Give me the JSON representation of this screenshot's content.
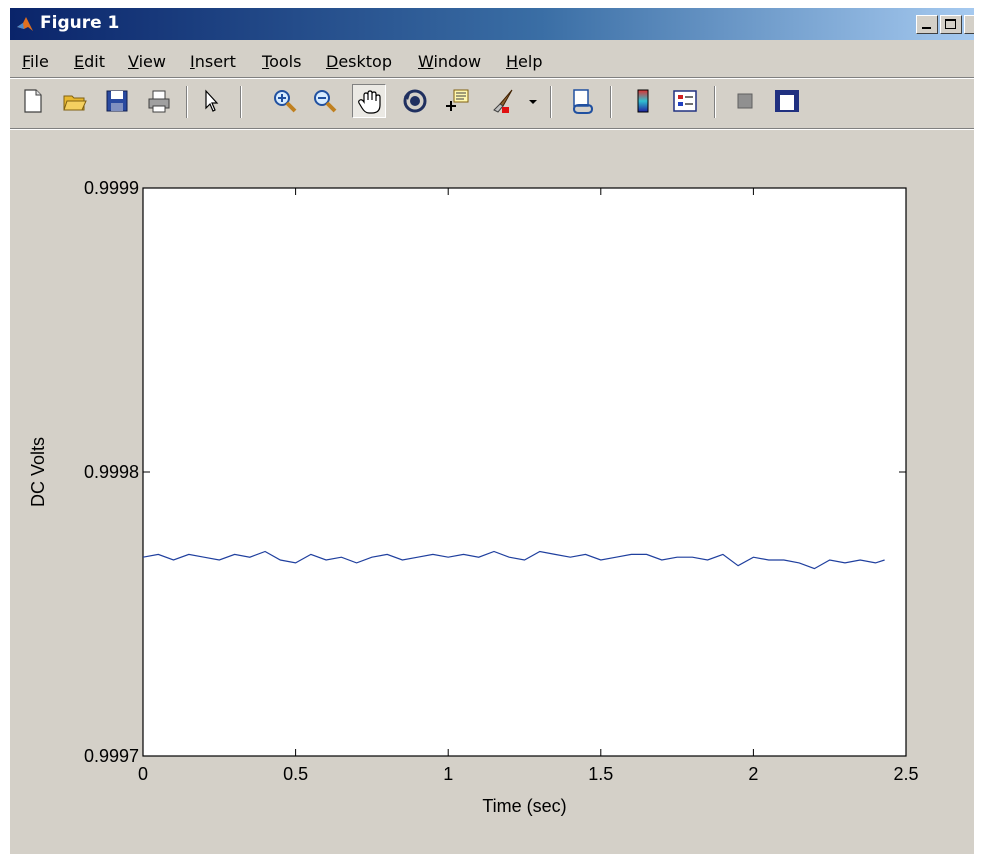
{
  "window": {
    "title": "Figure 1"
  },
  "menu": {
    "items": [
      {
        "label": "File",
        "underline": "F"
      },
      {
        "label": "Edit",
        "underline": "E"
      },
      {
        "label": "View",
        "underline": "V"
      },
      {
        "label": "Insert",
        "underline": "I"
      },
      {
        "label": "Tools",
        "underline": "T"
      },
      {
        "label": "Desktop",
        "underline": "D"
      },
      {
        "label": "Window",
        "underline": "W"
      },
      {
        "label": "Help",
        "underline": "H"
      }
    ]
  },
  "toolbar": {
    "buttons": [
      {
        "name": "new-figure-icon"
      },
      {
        "name": "open-file-icon"
      },
      {
        "name": "save-figure-icon"
      },
      {
        "name": "print-figure-icon"
      },
      {
        "name": "edit-plot-arrow-icon"
      },
      {
        "name": "zoom-in-icon"
      },
      {
        "name": "zoom-out-icon"
      },
      {
        "name": "pan-hand-icon",
        "active": true
      },
      {
        "name": "rotate-3d-icon"
      },
      {
        "name": "data-cursor-icon"
      },
      {
        "name": "brush-icon"
      },
      {
        "name": "link-plot-icon"
      },
      {
        "name": "insert-colorbar-icon"
      },
      {
        "name": "insert-legend-icon"
      },
      {
        "name": "hide-plot-tools-icon"
      },
      {
        "name": "show-plot-tools-icon"
      }
    ]
  },
  "chart_data": {
    "type": "line",
    "title": "",
    "xlabel": "Time (sec)",
    "ylabel": "DC Volts",
    "xlim": [
      0,
      2.5
    ],
    "ylim": [
      0.9997,
      0.9999
    ],
    "xticks": [
      "0",
      "0.5",
      "1",
      "1.5",
      "2",
      "2.5"
    ],
    "yticks": [
      "0.9997",
      "0.9998",
      "0.9999"
    ],
    "grid": false,
    "colors": {
      "line": "#1f3f9e",
      "axes_bg": "#ffffff",
      "figure_bg": "#d4d0c8"
    },
    "series": [
      {
        "x": [
          0,
          0.05,
          0.1,
          0.15,
          0.2,
          0.25,
          0.3,
          0.35,
          0.4,
          0.45,
          0.5,
          0.55,
          0.6,
          0.65,
          0.7,
          0.75,
          0.8,
          0.85,
          0.9,
          0.95,
          1.0,
          1.05,
          1.1,
          1.15,
          1.2,
          1.25,
          1.3,
          1.35,
          1.4,
          1.45,
          1.5,
          1.55,
          1.6,
          1.65,
          1.7,
          1.75,
          1.8,
          1.85,
          1.9,
          1.95,
          2.0,
          2.05,
          2.1,
          2.15,
          2.2,
          2.25,
          2.3,
          2.35,
          2.4,
          2.43
        ],
        "y": [
          0.99977,
          0.999771,
          0.999769,
          0.999771,
          0.99977,
          0.999769,
          0.999771,
          0.99977,
          0.999772,
          0.999769,
          0.999768,
          0.999771,
          0.999769,
          0.99977,
          0.999768,
          0.99977,
          0.999771,
          0.999769,
          0.99977,
          0.999771,
          0.99977,
          0.999771,
          0.99977,
          0.999772,
          0.99977,
          0.999769,
          0.999772,
          0.999771,
          0.99977,
          0.999771,
          0.999769,
          0.99977,
          0.999771,
          0.999771,
          0.999769,
          0.99977,
          0.99977,
          0.999769,
          0.999771,
          0.999767,
          0.99977,
          0.999769,
          0.999769,
          0.999768,
          0.999766,
          0.999769,
          0.999768,
          0.999769,
          0.999768,
          0.999769
        ]
      }
    ]
  }
}
